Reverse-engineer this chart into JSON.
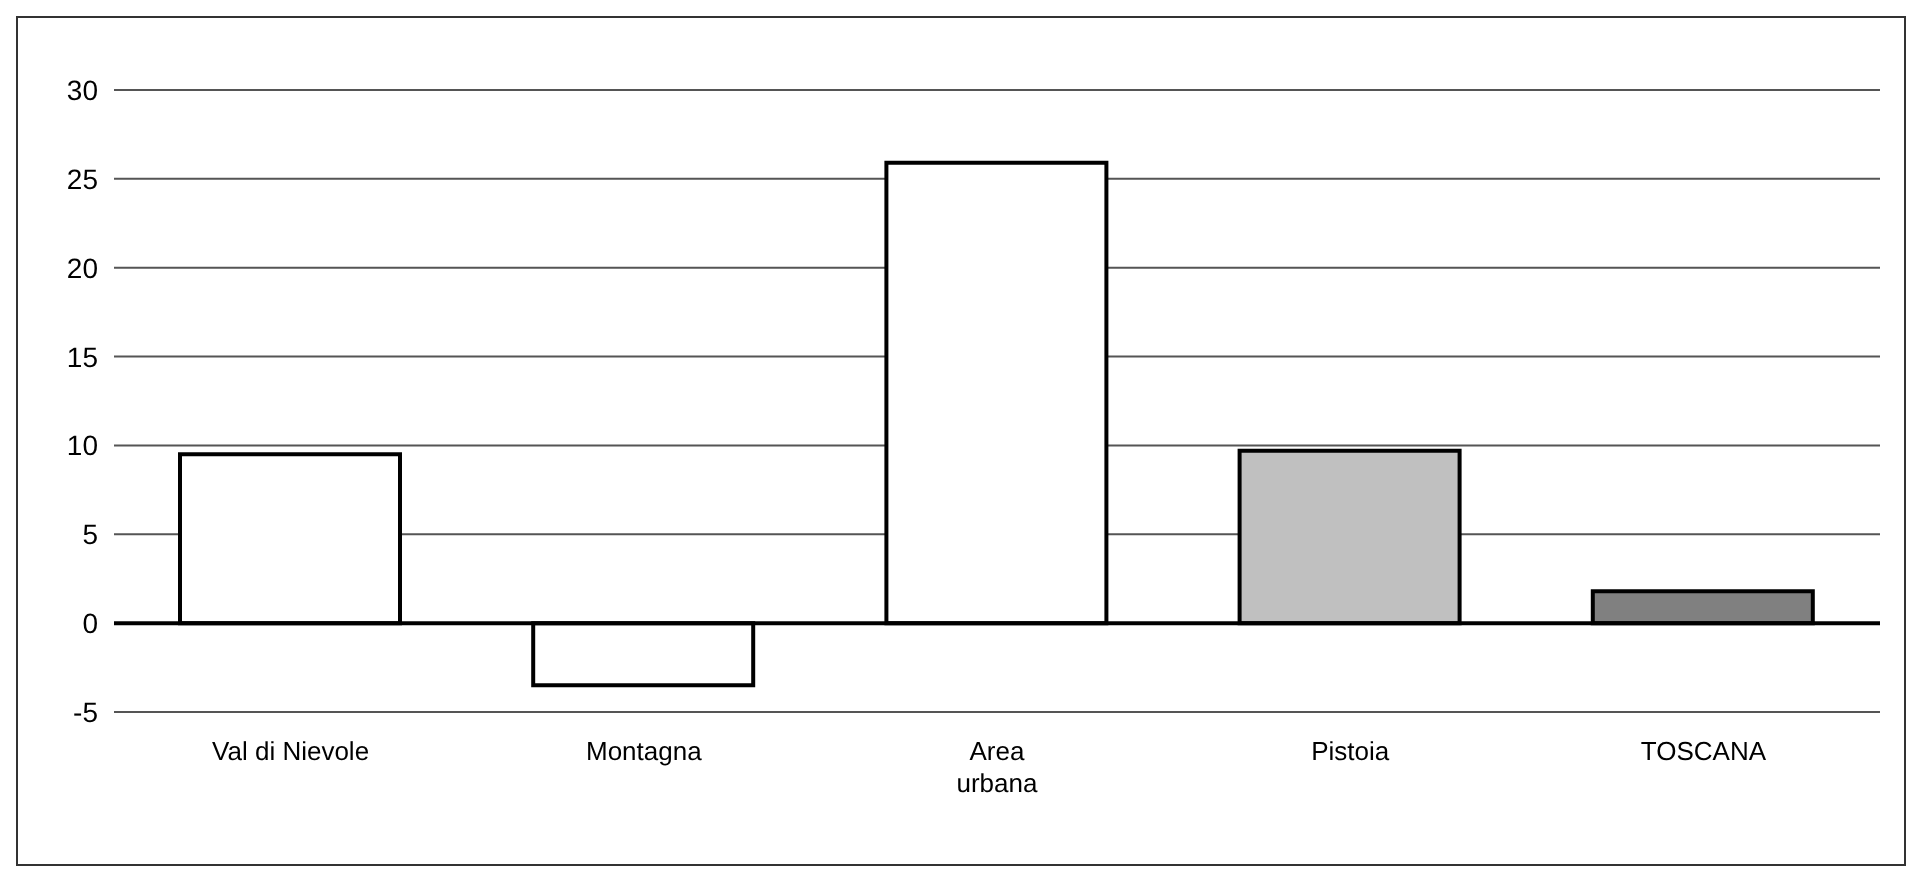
{
  "chart_data": {
    "type": "bar",
    "categories": [
      "Val di Nievole",
      "Montagna",
      "Area urbana",
      "Pistoia",
      "TOSCANA"
    ],
    "values": [
      9.5,
      -3.5,
      25.9,
      9.7,
      1.8
    ],
    "colors": [
      "#ffffff",
      "#ffffff",
      "#ffffff",
      "#c0c0c0",
      "#808080"
    ],
    "ylim": [
      -5,
      30
    ],
    "yticks": [
      -5,
      0,
      5,
      10,
      15,
      20,
      25,
      30
    ],
    "grid": "y"
  }
}
